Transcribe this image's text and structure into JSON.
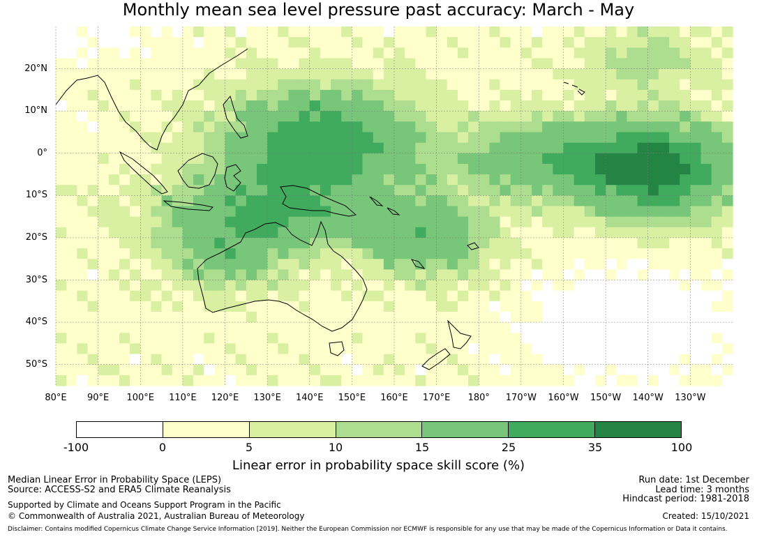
{
  "title": "Monthly mean sea level pressure past accuracy: March - May",
  "map": {
    "lat_labels": [
      "20°N",
      "10°N",
      "0°",
      "10°S",
      "20°S",
      "30°S",
      "40°S",
      "50°S"
    ],
    "lon_labels": [
      "80°E",
      "90°E",
      "100°E",
      "110°E",
      "120°E",
      "130°E",
      "140°E",
      "150°E",
      "160°E",
      "170°E",
      "180°",
      "170°W",
      "160°W",
      "150°W",
      "140°W",
      "130°W"
    ],
    "lat_range": [
      -55,
      30
    ],
    "lon_range": [
      80,
      240
    ]
  },
  "colorbar": {
    "ticks": [
      "-100",
      "0",
      "5",
      "10",
      "15",
      "25",
      "35",
      "100"
    ],
    "colors": [
      "#ffffff",
      "#ffffcc",
      "#d9f0a3",
      "#addd8e",
      "#78c679",
      "#41ab5d",
      "#238443"
    ],
    "title": "Linear error in probability space skill score (%)"
  },
  "footer": {
    "left_line1": "Median Linear Error in Probability Space (LEPS)",
    "left_line2": "Source: ACCESS-S2 and ERA5 Climate Reanalysis",
    "left_line3": "Supported by Climate and Oceans Support Program in the Pacific",
    "left_line4": "© Commonwealth of Australia 2021, Australian Bureau of Meteorology",
    "right_line1": "Run date: 1st December",
    "right_line2": "Lead time: 3 months",
    "right_line3": "Hindcast period: 1981-2018",
    "right_line4": "Created: 15/10/2021",
    "disclaimer": "Disclaimer: Contains modified Copernicus Climate Change Service Information [2019]. Neither the European Commission nor ECMWF is responsible for any use that may be made of the Copernicus Information or Data it contains."
  }
}
